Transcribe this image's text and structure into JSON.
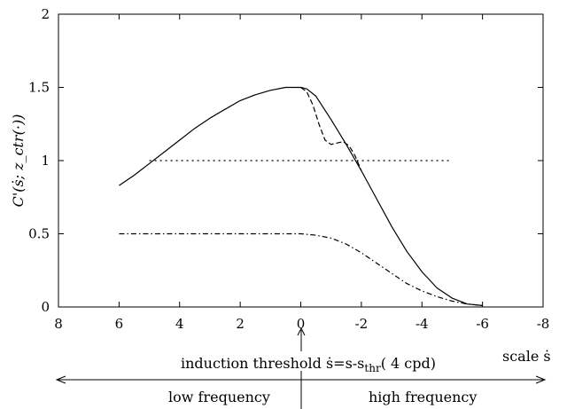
{
  "chart_data": {
    "type": "line",
    "xlim": [
      8,
      -8
    ],
    "ylim": [
      0,
      2
    ],
    "x_ticks": [
      8,
      6,
      4,
      2,
      0,
      -2,
      -4,
      -6,
      -8
    ],
    "y_ticks": [
      0,
      0.5,
      1,
      1.5,
      2
    ],
    "x_tick_labels": [
      "8",
      "6",
      "4",
      "2",
      "0",
      "-2",
      "-4",
      "-6",
      "-8"
    ],
    "y_tick_labels": [
      "0",
      "0.5",
      "1",
      "1.5",
      "2"
    ],
    "ylabel": "C'(ṡ; z_ctr(·))",
    "xlabel": "scale ṡ",
    "threshold_label_main": "induction threshold ṡ=s-s",
    "threshold_label_sub": "thr",
    "threshold_label_tail": "( 4 cpd)",
    "low_label": "low frequency",
    "high_label": "high frequency",
    "grid": false,
    "series": [
      {
        "style": "solid",
        "x": [
          6,
          5.5,
          5,
          4.5,
          4,
          3.5,
          3,
          2.5,
          2,
          1.5,
          1,
          0.5,
          0,
          -0.2,
          -0.5,
          -1,
          -1.5,
          -2,
          -2.5,
          -3,
          -3.5,
          -4,
          -4.5,
          -5,
          -5.5,
          -6
        ],
        "y": [
          0.83,
          0.9,
          0.98,
          1.06,
          1.14,
          1.22,
          1.29,
          1.35,
          1.41,
          1.45,
          1.48,
          1.5,
          1.5,
          1.49,
          1.44,
          1.28,
          1.11,
          0.93,
          0.74,
          0.55,
          0.38,
          0.24,
          0.13,
          0.06,
          0.02,
          0.01
        ]
      },
      {
        "style": "dashed",
        "x": [
          0,
          -0.2,
          -0.4,
          -0.6,
          -0.8,
          -1.0,
          -1.2,
          -1.4,
          -1.6,
          -1.8,
          -2.0
        ],
        "y": [
          1.5,
          1.47,
          1.38,
          1.25,
          1.14,
          1.11,
          1.12,
          1.13,
          1.1,
          1.03,
          0.93
        ]
      },
      {
        "style": "dotted",
        "x": [
          5,
          -5
        ],
        "y": [
          1.0,
          1.0
        ]
      },
      {
        "style": "dashdot",
        "x": [
          6,
          5,
          4,
          3,
          2,
          1,
          0,
          -0.5,
          -1,
          -1.5,
          -2,
          -2.5,
          -3,
          -3.5,
          -4,
          -4.5,
          -5,
          -5.5,
          -6
        ],
        "y": [
          0.5,
          0.5,
          0.5,
          0.5,
          0.5,
          0.5,
          0.5,
          0.49,
          0.47,
          0.43,
          0.37,
          0.3,
          0.23,
          0.16,
          0.11,
          0.07,
          0.04,
          0.02,
          0.01
        ]
      }
    ]
  }
}
